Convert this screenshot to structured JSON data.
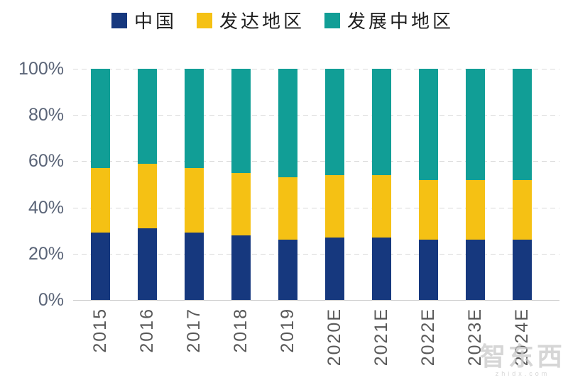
{
  "chart_data": {
    "type": "bar",
    "stacked": true,
    "percent": true,
    "title": "",
    "xlabel": "",
    "ylabel": "",
    "categories": [
      "2015",
      "2016",
      "2017",
      "2018",
      "2019",
      "2020E",
      "2021E",
      "2022E",
      "2023E",
      "2024E"
    ],
    "series": [
      {
        "name": "中国",
        "color": "#16387E",
        "values": [
          29,
          31,
          29,
          28,
          26,
          27,
          27,
          26,
          26,
          26
        ]
      },
      {
        "name": "发达地区",
        "color": "#F5C114",
        "values": [
          28,
          28,
          28,
          27,
          27,
          27,
          27,
          26,
          26,
          26
        ]
      },
      {
        "name": "发展中地区",
        "color": "#119E96",
        "values": [
          43,
          41,
          43,
          45,
          47,
          46,
          46,
          48,
          48,
          48
        ]
      }
    ],
    "ylim": [
      0,
      100
    ],
    "yticks": [
      "0%",
      "20%",
      "40%",
      "60%",
      "80%",
      "100%"
    ],
    "grid": "horizontal-dashed",
    "legend_position": "top"
  },
  "colors": {
    "grid": "#d9d9d9",
    "axis_line": "#c8c8c8",
    "ytick_text": "#5a6477",
    "xtick_text": "#595959",
    "legend_text": "#1f1f1f"
  },
  "watermark": {
    "main": "智东西",
    "sub": "zhidx.com"
  }
}
